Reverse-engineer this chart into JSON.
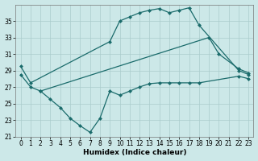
{
  "xlabel": "Humidex (Indice chaleur)",
  "xlim": [
    -0.5,
    23.5
  ],
  "ylim": [
    21,
    37
  ],
  "yticks": [
    21,
    23,
    25,
    27,
    29,
    31,
    33,
    35
  ],
  "xticks": [
    0,
    1,
    2,
    3,
    4,
    5,
    6,
    7,
    8,
    9,
    10,
    11,
    12,
    13,
    14,
    15,
    16,
    17,
    18,
    19,
    20,
    21,
    22,
    23
  ],
  "background_color": "#cce8e8",
  "grid_color": "#aacccc",
  "line_color": "#1a6b6b",
  "curve1_x": [
    0,
    1,
    9,
    10,
    11,
    12,
    13,
    14,
    15,
    16,
    17,
    18,
    22,
    23
  ],
  "curve1_y": [
    29.5,
    27.5,
    32.5,
    35.0,
    35.5,
    36.0,
    36.3,
    36.5,
    36.0,
    36.3,
    36.6,
    34.5,
    29.0,
    28.5
  ],
  "curve2_x": [
    0,
    1,
    2,
    19,
    20,
    22,
    23
  ],
  "curve2_y": [
    28.5,
    27.0,
    26.5,
    33.0,
    31.0,
    29.2,
    28.7
  ],
  "curve3_x": [
    2,
    3,
    4,
    5,
    6,
    7,
    8,
    9,
    10,
    11,
    12,
    13,
    14,
    15,
    16,
    17,
    18,
    22,
    23
  ],
  "curve3_y": [
    26.5,
    25.5,
    24.5,
    23.2,
    22.3,
    21.5,
    23.2,
    26.5,
    26.0,
    26.5,
    27.0,
    27.4,
    27.5,
    27.5,
    27.5,
    27.5,
    27.5,
    28.3,
    28.0
  ]
}
